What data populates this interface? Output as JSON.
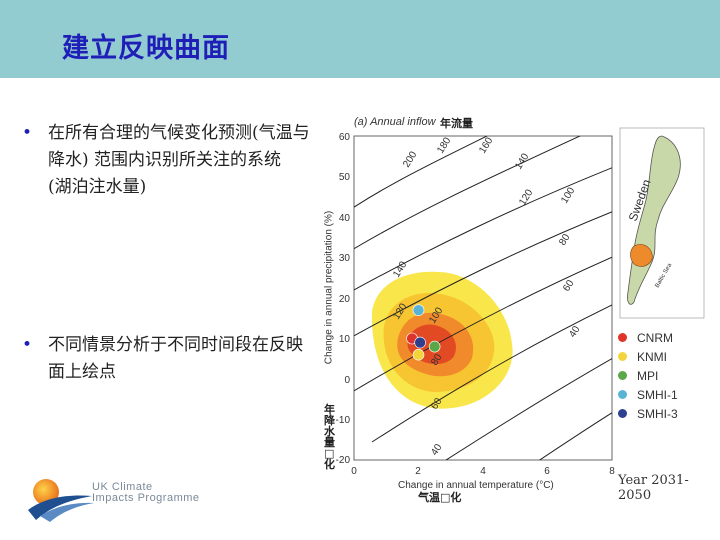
{
  "slide": {
    "title": "建立反映曲面",
    "bullets": [
      "在所有合理的气候变化预测(气温与降水) 范围内识别所关注的系统 (湖泊注水量)",
      "不同情景分析于不同时间段在反映面上绘点"
    ]
  },
  "figure": {
    "panel_title": "(a) Annual inflow",
    "annotation_annual": "年流量",
    "annotation_precip": "年降水量□化",
    "annotation_temp": "气温□化",
    "map_labels": [
      "Sweden",
      "Baltic Sea"
    ],
    "year_range": "Year 2031-2050"
  },
  "chart_data": {
    "type": "scatter",
    "title": "(a) Annual inflow",
    "xlabel": "Change in annual temperature (°C)",
    "ylabel": "Change in annual precipitation (%)",
    "xlim": [
      0,
      8
    ],
    "ylim": [
      -20,
      60
    ],
    "x_ticks": [
      "0",
      "2",
      "4",
      "6",
      "8"
    ],
    "y_ticks": [
      "60",
      "50",
      "40",
      "30",
      "20",
      "10",
      "0",
      "-10",
      "-20"
    ],
    "contour_labels": [
      "200",
      "180",
      "160",
      "140",
      "120",
      "100",
      "80",
      "60",
      "40",
      "140",
      "120",
      "100",
      "80",
      "60",
      "40"
    ],
    "series": [
      {
        "name": "CNRM",
        "color": "#e0342a",
        "x": 1.8,
        "y": 10
      },
      {
        "name": "KNMI",
        "color": "#f3d43a",
        "x": 2.0,
        "y": 6
      },
      {
        "name": "MPI",
        "color": "#5aa848",
        "x": 2.5,
        "y": 8
      },
      {
        "name": "SMHI-1",
        "color": "#58b3d4",
        "x": 2.0,
        "y": 17
      },
      {
        "name": "SMHI-3",
        "color": "#2e3f8f",
        "x": 2.05,
        "y": 9
      }
    ]
  },
  "logo": {
    "line1": "UK Climate",
    "line2": "Impacts Programme"
  }
}
